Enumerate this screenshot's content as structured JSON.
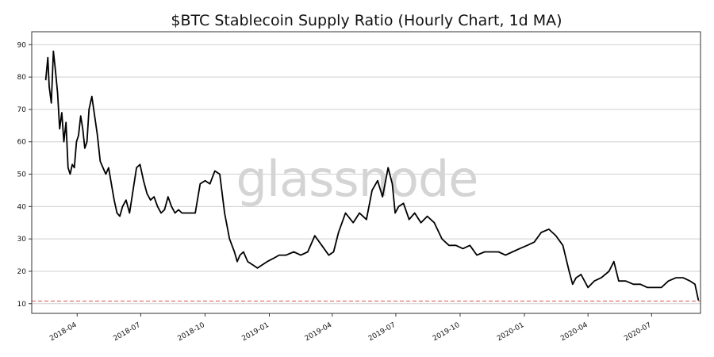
{
  "chart_data": {
    "type": "line",
    "title": "$BTC Stablecoin Supply Ratio (Hourly Chart, 1d MA)",
    "watermark": "glassnode",
    "xlabel": "",
    "ylabel": "",
    "ylim": [
      7,
      94
    ],
    "xlim": [
      "2018-01-26",
      "2020-09-09"
    ],
    "yticks": [
      10,
      20,
      30,
      40,
      50,
      60,
      70,
      80,
      90
    ],
    "xticks": [
      "2018-04",
      "2018-07",
      "2018-10",
      "2019-01",
      "2019-04",
      "2019-07",
      "2019-10",
      "2020-01",
      "2020-04",
      "2020-07"
    ],
    "grid": "horizontal",
    "line_color": "#000000",
    "reference_line": {
      "value": 10.8,
      "color": "#d9534f",
      "style": "dashed"
    },
    "series": [
      {
        "x": [
          "2018-02-15",
          "2018-02-18",
          "2018-02-20",
          "2018-02-23",
          "2018-02-26",
          "2018-03-01",
          "2018-03-04",
          "2018-03-07",
          "2018-03-10",
          "2018-03-13",
          "2018-03-16",
          "2018-03-19",
          "2018-03-22",
          "2018-03-25",
          "2018-03-28",
          "2018-03-31",
          "2018-04-03",
          "2018-04-06",
          "2018-04-09",
          "2018-04-12",
          "2018-04-15",
          "2018-04-18",
          "2018-04-22",
          "2018-04-26",
          "2018-04-30",
          "2018-05-04",
          "2018-05-08",
          "2018-05-12",
          "2018-05-16",
          "2018-05-20",
          "2018-05-24",
          "2018-05-28",
          "2018-06-01",
          "2018-06-05",
          "2018-06-10",
          "2018-06-15",
          "2018-06-20",
          "2018-06-25",
          "2018-06-30",
          "2018-07-05",
          "2018-07-10",
          "2018-07-15",
          "2018-07-20",
          "2018-07-25",
          "2018-07-30",
          "2018-08-04",
          "2018-08-09",
          "2018-08-14",
          "2018-08-19",
          "2018-08-24",
          "2018-08-29",
          "2018-09-03",
          "2018-09-10",
          "2018-09-17",
          "2018-09-24",
          "2018-10-01",
          "2018-10-08",
          "2018-10-15",
          "2018-10-22",
          "2018-10-29",
          "2018-11-05",
          "2018-11-12",
          "2018-11-16",
          "2018-11-20",
          "2018-11-25",
          "2018-12-01",
          "2018-12-08",
          "2018-12-15",
          "2018-12-22",
          "2018-12-29",
          "2019-01-07",
          "2019-01-15",
          "2019-01-25",
          "2019-02-05",
          "2019-02-15",
          "2019-02-25",
          "2019-03-07",
          "2019-03-17",
          "2019-03-27",
          "2019-04-03",
          "2019-04-10",
          "2019-04-20",
          "2019-05-01",
          "2019-05-10",
          "2019-05-20",
          "2019-05-28",
          "2019-06-05",
          "2019-06-12",
          "2019-06-20",
          "2019-06-26",
          "2019-06-30",
          "2019-07-05",
          "2019-07-12",
          "2019-07-20",
          "2019-07-28",
          "2019-08-06",
          "2019-08-15",
          "2019-08-25",
          "2019-09-05",
          "2019-09-15",
          "2019-09-25",
          "2019-10-05",
          "2019-10-15",
          "2019-10-25",
          "2019-11-05",
          "2019-11-15",
          "2019-11-25",
          "2019-12-05",
          "2019-12-15",
          "2019-12-25",
          "2020-01-05",
          "2020-01-15",
          "2020-01-25",
          "2020-02-05",
          "2020-02-15",
          "2020-02-25",
          "2020-03-05",
          "2020-03-10",
          "2020-03-15",
          "2020-03-22",
          "2020-04-01",
          "2020-04-10",
          "2020-04-20",
          "2020-05-01",
          "2020-05-08",
          "2020-05-15",
          "2020-05-25",
          "2020-06-05",
          "2020-06-15",
          "2020-06-25",
          "2020-07-05",
          "2020-07-15",
          "2020-07-25",
          "2020-08-05",
          "2020-08-15",
          "2020-08-25",
          "2020-09-01",
          "2020-09-06"
        ],
        "values": [
          79,
          86,
          77,
          72,
          88,
          82,
          75,
          64,
          69,
          60,
          66,
          52,
          50,
          53,
          52,
          60,
          62,
          68,
          64,
          58,
          60,
          70,
          74,
          68,
          62,
          54,
          52,
          50,
          52,
          47,
          42,
          38,
          37,
          40,
          42,
          38,
          45,
          52,
          53,
          48,
          44,
          42,
          43,
          40,
          38,
          39,
          43,
          40,
          38,
          39,
          38,
          38,
          38,
          38,
          47,
          48,
          47,
          51,
          50,
          38,
          30,
          26,
          23,
          25,
          26,
          23,
          22,
          21,
          22,
          23,
          24,
          25,
          25,
          26,
          25,
          26,
          31,
          28,
          25,
          26,
          32,
          38,
          35,
          38,
          36,
          45,
          48,
          43,
          52,
          47,
          38,
          40,
          41,
          36,
          38,
          35,
          37,
          35,
          30,
          28,
          28,
          27,
          28,
          25,
          26,
          26,
          26,
          25,
          26,
          27,
          28,
          29,
          32,
          33,
          31,
          28,
          20,
          16,
          18,
          19,
          15,
          17,
          18,
          20,
          23,
          17,
          17,
          16,
          16,
          15,
          15,
          15,
          17,
          18,
          18,
          17,
          16,
          11
        ]
      }
    ]
  }
}
